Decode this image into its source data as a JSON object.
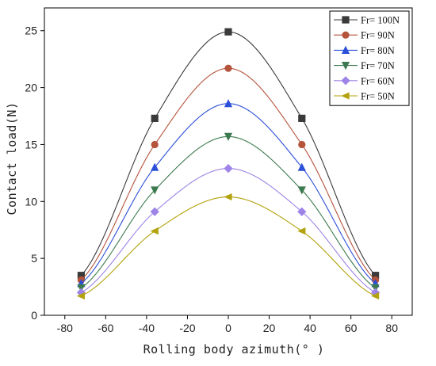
{
  "chart_data": {
    "type": "line",
    "title": "",
    "xlabel": "Rolling body azimuth(° )",
    "ylabel": "Contact load(N)",
    "xlim": [
      -90,
      90
    ],
    "ylim": [
      0,
      27
    ],
    "xticks": [
      -80,
      -60,
      -40,
      -20,
      0,
      20,
      40,
      60,
      80
    ],
    "yticks": [
      0,
      5,
      10,
      15,
      20,
      25
    ],
    "x": [
      -72,
      -36,
      0,
      36,
      72
    ],
    "series": [
      {
        "name": "Fr= 100N",
        "values": [
          3.5,
          17.3,
          24.9,
          17.3,
          3.5
        ],
        "color": "#3a3a3a",
        "marker": "square"
      },
      {
        "name": "Fr= 90N",
        "values": [
          3.1,
          15.0,
          21.7,
          15.0,
          3.1
        ],
        "color": "#b5533b",
        "marker": "circle"
      },
      {
        "name": "Fr= 80N",
        "values": [
          2.8,
          13.0,
          18.6,
          13.0,
          2.8
        ],
        "color": "#2b4fd8",
        "marker": "triangle-up"
      },
      {
        "name": "Fr= 70N",
        "values": [
          2.4,
          11.0,
          15.7,
          11.0,
          2.4
        ],
        "color": "#3d7a4f",
        "marker": "triangle-down"
      },
      {
        "name": "Fr= 60N",
        "values": [
          2.0,
          9.1,
          12.9,
          9.1,
          2.0
        ],
        "color": "#9d84e6",
        "marker": "diamond"
      },
      {
        "name": "Fr= 50N",
        "values": [
          1.7,
          7.4,
          10.4,
          7.4,
          1.7
        ],
        "color": "#b3a20d",
        "marker": "triangle-left"
      }
    ],
    "legend": "top-right",
    "grid": false
  }
}
